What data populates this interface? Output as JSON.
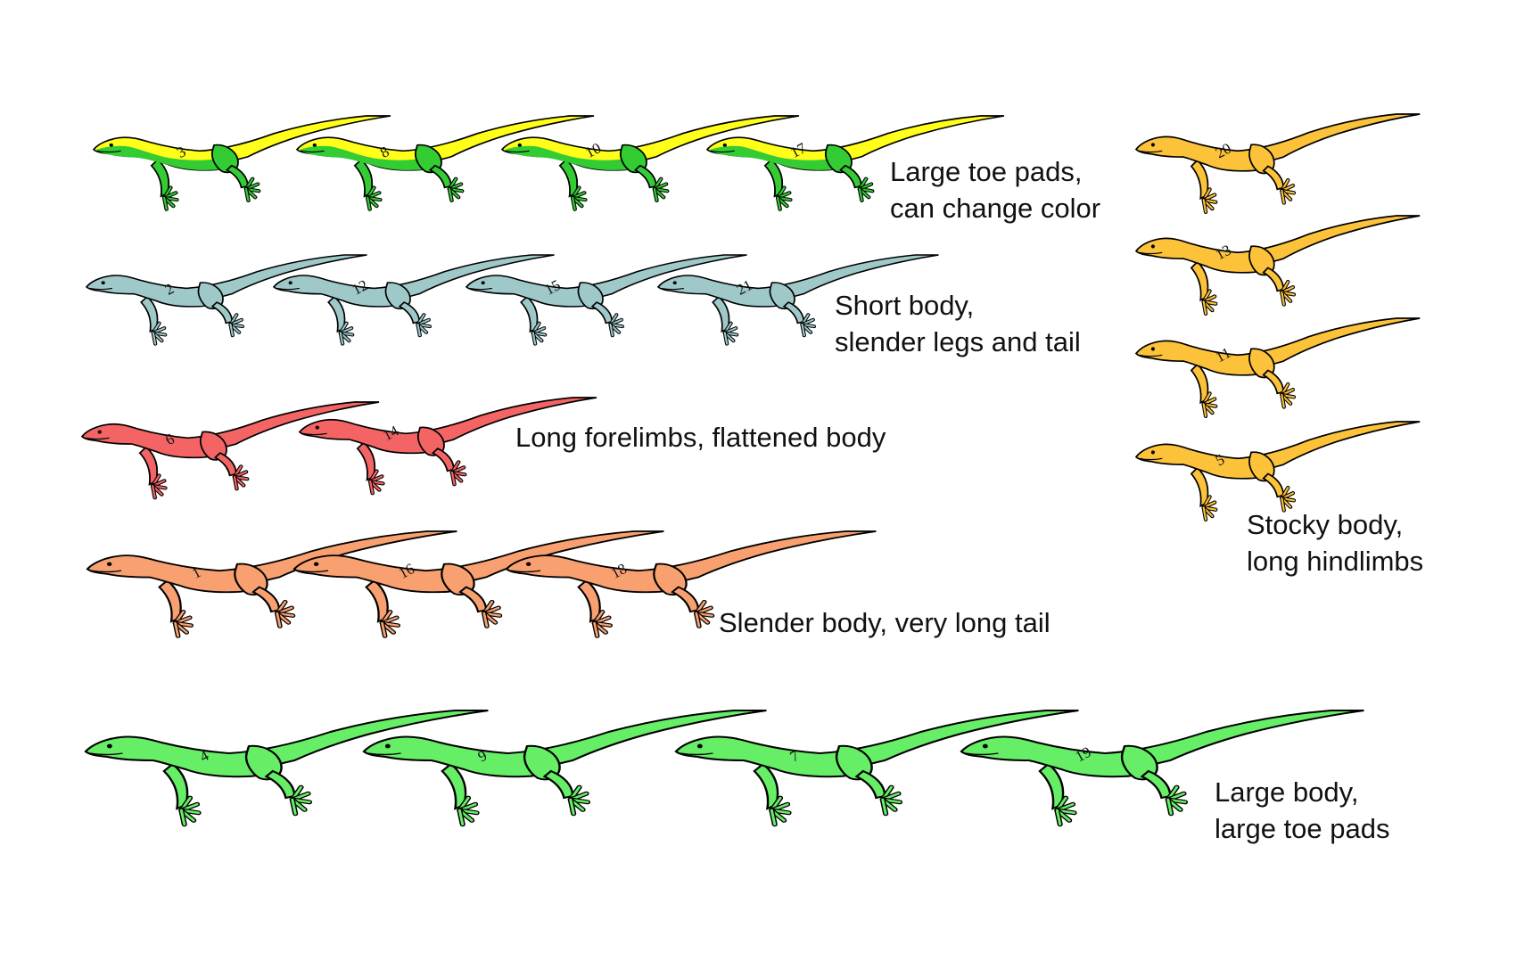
{
  "groups": [
    {
      "id": "toe-pads-color",
      "fill": "#ffff1a",
      "accent": "#33cc33",
      "numbers": [
        "3",
        "8",
        "10",
        "17"
      ],
      "caption": [
        "Large toe pads,",
        "can change color"
      ]
    },
    {
      "id": "short-body",
      "fill": "#9fc8c8",
      "numbers": [
        "2",
        "12",
        "15",
        "21"
      ],
      "caption": [
        "Short body,",
        "slender legs and tail"
      ]
    },
    {
      "id": "long-forelimbs",
      "fill": "#f46464",
      "numbers": [
        "6",
        "14"
      ],
      "caption": [
        "Long forelimbs, flattened body"
      ]
    },
    {
      "id": "slender-body",
      "fill": "#f8a070",
      "numbers": [
        "1",
        "16",
        "18"
      ],
      "caption": [
        "Slender body, very long tail"
      ]
    },
    {
      "id": "large-body",
      "fill": "#66ee66",
      "numbers": [
        "4",
        "9",
        "7",
        "19"
      ],
      "caption": [
        "Large body,",
        "large toe pads"
      ]
    },
    {
      "id": "stocky-body",
      "fill": "#fcc23a",
      "numbers": [
        "20",
        "13",
        "11",
        "5"
      ],
      "caption": [
        "Stocky body,",
        "long hindlimbs"
      ]
    }
  ]
}
